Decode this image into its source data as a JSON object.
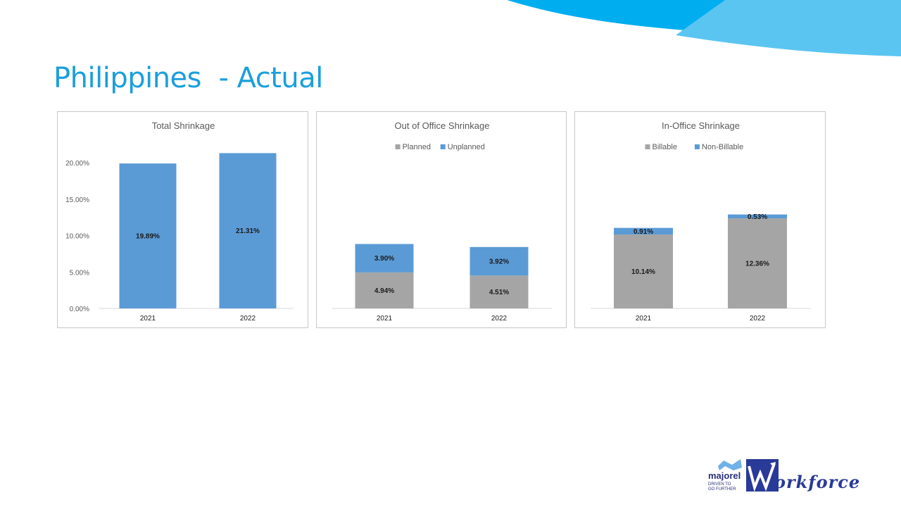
{
  "slide": {
    "title": "Philippines  - Actual"
  },
  "logo": {
    "brand": "majorel",
    "tagline_1": "DRIVEN TO",
    "tagline_2": "GO FURTHER",
    "product": "orkforce",
    "colors": {
      "primary": "#2a3a98",
      "accent": "#1a9fdc"
    }
  },
  "colors": {
    "title": "#1a9fdc",
    "blue_series": "#5b9bd5",
    "gray_series": "#a5a5a5",
    "decor_dark": "#00adef",
    "decor_light": "#5bc5f2"
  },
  "chart_data": [
    {
      "type": "bar",
      "title": "Total Shrinkage",
      "categories": [
        "2021",
        "2022"
      ],
      "series": [
        {
          "values": [
            19.89,
            21.31
          ],
          "labels": [
            "19.89%",
            "21.31%"
          ],
          "color": "#5b9bd5"
        }
      ],
      "yaxis": {
        "ticks": [
          "0.00%",
          "5.00%",
          "10.00%",
          "15.00%",
          "20.00%"
        ],
        "ylim": [
          0,
          22
        ]
      },
      "legend": "none"
    },
    {
      "type": "bar",
      "stacked": true,
      "title": "Out of Office Shrinkage",
      "categories": [
        "2021",
        "2022"
      ],
      "series": [
        {
          "name": "Planned",
          "values": [
            4.94,
            4.51
          ],
          "labels": [
            "4.94%",
            "4.51%"
          ],
          "color": "#a5a5a5"
        },
        {
          "name": "Unplanned",
          "values": [
            3.9,
            3.92
          ],
          "labels": [
            "3.90%",
            "3.92%"
          ],
          "color": "#5b9bd5"
        }
      ],
      "ylim": [
        0,
        22
      ],
      "legend": "top"
    },
    {
      "type": "bar",
      "stacked": true,
      "title": "In-Office Shrinkage",
      "categories": [
        "2021",
        "2022"
      ],
      "series": [
        {
          "name": "Billable",
          "values": [
            10.14,
            12.36
          ],
          "labels": [
            "10.14%",
            "12.36%"
          ],
          "color": "#a5a5a5"
        },
        {
          "name": "Non-Billable",
          "values": [
            0.91,
            0.53
          ],
          "labels": [
            "0.91%",
            "0.53%"
          ],
          "color": "#5b9bd5"
        }
      ],
      "ylim": [
        0,
        22
      ],
      "legend": "top"
    }
  ]
}
